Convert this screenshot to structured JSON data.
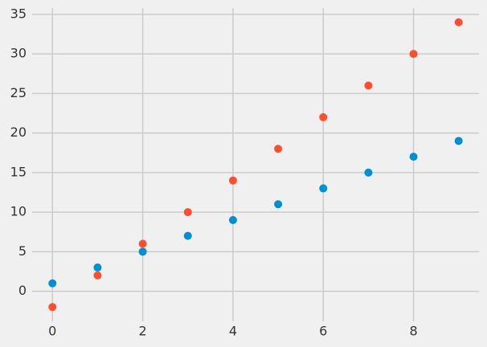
{
  "chart_data": {
    "type": "scatter",
    "x": [
      0,
      1,
      2,
      3,
      4,
      5,
      6,
      7,
      8,
      9
    ],
    "series": [
      {
        "color": "#008fd5",
        "values": [
          1,
          3,
          5,
          7,
          9,
          11,
          13,
          15,
          17,
          19
        ]
      },
      {
        "color": "#fc4f30",
        "values": [
          -2,
          2,
          6,
          10,
          14,
          18,
          22,
          26,
          30,
          34
        ]
      }
    ],
    "xlim": [
      -0.45,
      9.45
    ],
    "ylim": [
      -3.8,
      35.8
    ],
    "xticks": [
      0,
      2,
      4,
      6,
      8
    ],
    "yticks": [
      0,
      5,
      10,
      15,
      20,
      25,
      30,
      35
    ],
    "grid": true
  }
}
